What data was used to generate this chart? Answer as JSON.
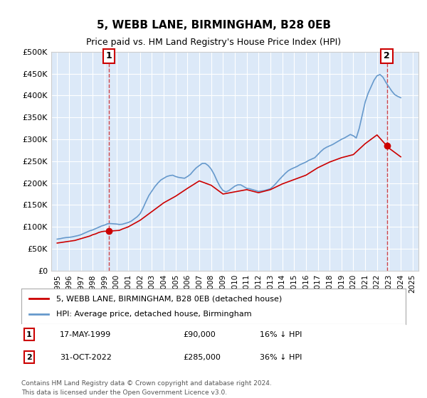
{
  "title": "5, WEBB LANE, BIRMINGHAM, B28 0EB",
  "subtitle": "Price paid vs. HM Land Registry's House Price Index (HPI)",
  "footer_line1": "Contains HM Land Registry data © Crown copyright and database right 2024.",
  "footer_line2": "This data is licensed under the Open Government Licence v3.0.",
  "legend_label_red": "5, WEBB LANE, BIRMINGHAM, B28 0EB (detached house)",
  "legend_label_blue": "HPI: Average price, detached house, Birmingham",
  "annotation1_label": "1",
  "annotation1_date": "17-MAY-1999",
  "annotation1_price": "£90,000",
  "annotation1_hpi": "16% ↓ HPI",
  "annotation2_label": "2",
  "annotation2_date": "31-OCT-2022",
  "annotation2_price": "£285,000",
  "annotation2_hpi": "36% ↓ HPI",
  "ylim": [
    0,
    500000
  ],
  "yticks": [
    0,
    50000,
    100000,
    150000,
    200000,
    250000,
    300000,
    350000,
    400000,
    450000,
    500000
  ],
  "background_color": "#dce9f8",
  "plot_bg_color": "#dce9f8",
  "grid_color": "#ffffff",
  "red_color": "#cc0000",
  "blue_color": "#6699cc",
  "sale1_x": 1999.38,
  "sale1_y": 90000,
  "sale2_x": 2022.83,
  "sale2_y": 285000,
  "hpi_dates": [
    1995.0,
    1995.25,
    1995.5,
    1995.75,
    1996.0,
    1996.25,
    1996.5,
    1996.75,
    1997.0,
    1997.25,
    1997.5,
    1997.75,
    1998.0,
    1998.25,
    1998.5,
    1998.75,
    1999.0,
    1999.25,
    1999.5,
    1999.75,
    2000.0,
    2000.25,
    2000.5,
    2000.75,
    2001.0,
    2001.25,
    2001.5,
    2001.75,
    2002.0,
    2002.25,
    2002.5,
    2002.75,
    2003.0,
    2003.25,
    2003.5,
    2003.75,
    2004.0,
    2004.25,
    2004.5,
    2004.75,
    2005.0,
    2005.25,
    2005.5,
    2005.75,
    2006.0,
    2006.25,
    2006.5,
    2006.75,
    2007.0,
    2007.25,
    2007.5,
    2007.75,
    2008.0,
    2008.25,
    2008.5,
    2008.75,
    2009.0,
    2009.25,
    2009.5,
    2009.75,
    2010.0,
    2010.25,
    2010.5,
    2010.75,
    2011.0,
    2011.25,
    2011.5,
    2011.75,
    2012.0,
    2012.25,
    2012.5,
    2012.75,
    2013.0,
    2013.25,
    2013.5,
    2013.75,
    2014.0,
    2014.25,
    2014.5,
    2014.75,
    2015.0,
    2015.25,
    2015.5,
    2015.75,
    2016.0,
    2016.25,
    2016.5,
    2016.75,
    2017.0,
    2017.25,
    2017.5,
    2017.75,
    2018.0,
    2018.25,
    2018.5,
    2018.75,
    2019.0,
    2019.25,
    2019.5,
    2019.75,
    2020.0,
    2020.25,
    2020.5,
    2020.75,
    2021.0,
    2021.25,
    2021.5,
    2021.75,
    2022.0,
    2022.25,
    2022.5,
    2022.75,
    2023.0,
    2023.25,
    2023.5,
    2023.75,
    2024.0
  ],
  "hpi_values": [
    72000,
    73000,
    74500,
    75500,
    76000,
    77000,
    78500,
    80000,
    82000,
    85000,
    88000,
    91000,
    93000,
    96000,
    99000,
    102000,
    104000,
    107000,
    107500,
    107000,
    106500,
    105500,
    106000,
    108000,
    110000,
    113000,
    118000,
    123000,
    130000,
    143000,
    158000,
    172000,
    182000,
    192000,
    200000,
    207000,
    211000,
    215000,
    217000,
    218000,
    215000,
    213000,
    212000,
    211000,
    215000,
    220000,
    228000,
    235000,
    240000,
    245000,
    245000,
    240000,
    232000,
    220000,
    205000,
    192000,
    183000,
    180000,
    183000,
    188000,
    193000,
    196000,
    196000,
    192000,
    188000,
    187000,
    185000,
    183000,
    181000,
    182000,
    183000,
    185000,
    187000,
    193000,
    200000,
    208000,
    215000,
    222000,
    228000,
    232000,
    235000,
    238000,
    242000,
    245000,
    248000,
    252000,
    255000,
    258000,
    265000,
    272000,
    278000,
    282000,
    285000,
    288000,
    292000,
    296000,
    300000,
    303000,
    307000,
    311000,
    308000,
    303000,
    325000,
    355000,
    385000,
    405000,
    420000,
    435000,
    445000,
    448000,
    442000,
    430000,
    420000,
    410000,
    402000,
    398000,
    395000
  ],
  "red_dates": [
    1995.0,
    1995.25,
    1995.5,
    1995.75,
    1996.0,
    1996.25,
    1996.5,
    1996.75,
    1997.0,
    1997.25,
    1997.5,
    1997.75,
    1998.0,
    1998.25,
    1998.5,
    1998.75,
    1999.0,
    1999.25,
    1999.38,
    1999.75,
    2000.0,
    2000.25,
    2000.5,
    2001.0,
    2002.0,
    2003.0,
    2004.0,
    2005.0,
    2006.0,
    2007.0,
    2008.0,
    2009.0,
    2010.0,
    2011.0,
    2012.0,
    2013.0,
    2014.0,
    2015.0,
    2016.0,
    2017.0,
    2018.0,
    2019.0,
    2020.0,
    2021.0,
    2022.0,
    2022.83,
    2023.0,
    2023.5,
    2024.0
  ],
  "red_values": [
    63000,
    64000,
    65000,
    66000,
    67000,
    68000,
    69000,
    71000,
    73000,
    75000,
    77000,
    79000,
    82000,
    84000,
    87000,
    89000,
    90000,
    90000,
    90000,
    91000,
    91500,
    92000,
    95000,
    100000,
    115000,
    135000,
    155000,
    170000,
    188000,
    205000,
    195000,
    175000,
    180000,
    185000,
    178000,
    185000,
    198000,
    208000,
    218000,
    235000,
    248000,
    258000,
    265000,
    290000,
    310000,
    285000,
    280000,
    270000,
    260000
  ],
  "xmin": 1994.5,
  "xmax": 2025.5,
  "xtick_years": [
    "1995",
    "1996",
    "1997",
    "1998",
    "1999",
    "2000",
    "2001",
    "2002",
    "2003",
    "2004",
    "2005",
    "2006",
    "2007",
    "2008",
    "2009",
    "2010",
    "2011",
    "2012",
    "2013",
    "2014",
    "2015",
    "2016",
    "2017",
    "2018",
    "2019",
    "2020",
    "2021",
    "2022",
    "2023",
    "2024",
    "2025"
  ],
  "xtick_values": [
    1995,
    1996,
    1997,
    1998,
    1999,
    2000,
    2001,
    2002,
    2003,
    2004,
    2005,
    2006,
    2007,
    2008,
    2009,
    2010,
    2011,
    2012,
    2013,
    2014,
    2015,
    2016,
    2017,
    2018,
    2019,
    2020,
    2021,
    2022,
    2023,
    2024,
    2025
  ]
}
